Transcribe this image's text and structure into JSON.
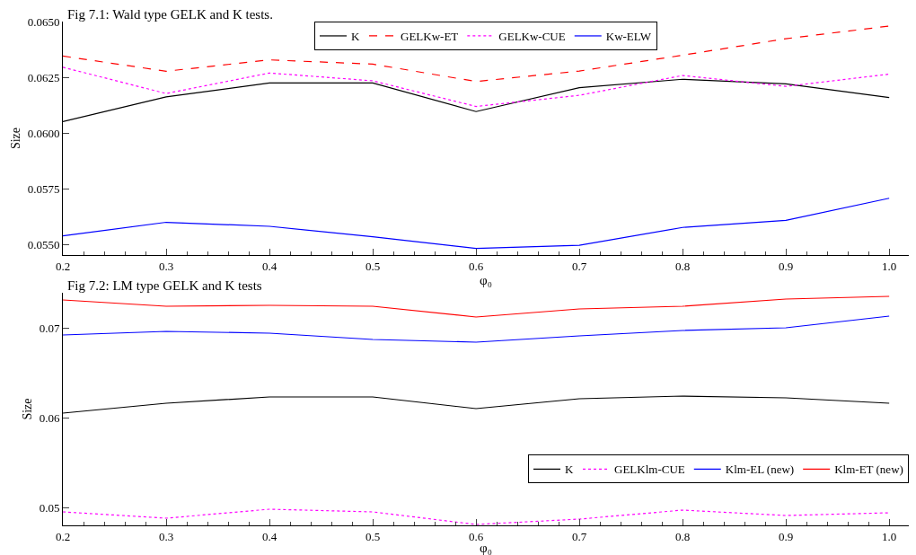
{
  "chart_data": [
    {
      "type": "line",
      "title": "Fig 7.1: Wald type GELK and K tests.",
      "xlabel": "φ₀",
      "ylabel": "Size",
      "x": [
        0.2,
        0.3,
        0.4,
        0.5,
        0.6,
        0.7,
        0.8,
        0.9,
        1.0
      ],
      "xlim": [
        0.2,
        1.019
      ],
      "xticks": [
        {
          "value": 0.2,
          "label": "0.2"
        },
        {
          "value": 0.3,
          "label": "0.3"
        },
        {
          "value": 0.4,
          "label": "0.4"
        },
        {
          "value": 0.5,
          "label": "0.5"
        },
        {
          "value": 0.6,
          "label": "0.6"
        },
        {
          "value": 0.7,
          "label": "0.7"
        },
        {
          "value": 0.8,
          "label": "0.8"
        },
        {
          "value": 0.9,
          "label": "0.9"
        },
        {
          "value": 1.0,
          "label": "1.0"
        }
      ],
      "ylim": [
        0.05452,
        0.065
      ],
      "yticks": [
        {
          "value": 0.055,
          "label": "0.0550"
        },
        {
          "value": 0.0575,
          "label": "0.0575"
        },
        {
          "value": 0.06,
          "label": "0.0600"
        },
        {
          "value": 0.0625,
          "label": "0.0625"
        },
        {
          "value": 0.065,
          "label": "0.0650"
        }
      ],
      "grid": false,
      "legend": "top",
      "marker": "none",
      "series": [
        {
          "name": "K",
          "color": "#000000",
          "line_style": "solid",
          "values": [
            0.06051,
            0.06162,
            0.06224,
            0.06224,
            0.06096,
            0.06203,
            0.06241,
            0.0622,
            0.06159
          ]
        },
        {
          "name": "GELKw-ET",
          "color": "#ff0000",
          "line_style": "dashed",
          "values": [
            0.06345,
            0.06277,
            0.06328,
            0.06309,
            0.06231,
            0.06278,
            0.06349,
            0.06423,
            0.0648
          ]
        },
        {
          "name": "GELKw-CUE",
          "color": "#ff00ff",
          "line_style": "dotted",
          "values": [
            0.06295,
            0.06177,
            0.06269,
            0.06234,
            0.06119,
            0.06169,
            0.06258,
            0.06209,
            0.06264
          ]
        },
        {
          "name": "Kw-ELW",
          "color": "#0000ff",
          "line_style": "solid",
          "values": [
            0.05538,
            0.05599,
            0.05581,
            0.05534,
            0.05482,
            0.05496,
            0.05576,
            0.05608,
            0.05707
          ]
        }
      ]
    },
    {
      "type": "line",
      "title": "Fig 7.2: LM type GELK and K tests",
      "xlabel": "φ₀",
      "ylabel": "Size",
      "x": [
        0.2,
        0.3,
        0.4,
        0.5,
        0.6,
        0.7,
        0.8,
        0.9,
        1.0
      ],
      "xlim": [
        0.2,
        1.019
      ],
      "xticks": [
        {
          "value": 0.2,
          "label": "0.2"
        },
        {
          "value": 0.3,
          "label": "0.3"
        },
        {
          "value": 0.4,
          "label": "0.4"
        },
        {
          "value": 0.5,
          "label": "0.5"
        },
        {
          "value": 0.6,
          "label": "0.6"
        },
        {
          "value": 0.7,
          "label": "0.7"
        },
        {
          "value": 0.8,
          "label": "0.8"
        },
        {
          "value": 0.9,
          "label": "0.9"
        },
        {
          "value": 1.0,
          "label": "1.0"
        }
      ],
      "ylim": [
        0.048,
        0.0739
      ],
      "yticks": [
        0.05,
        0.06,
        0.07
      ],
      "grid": false,
      "legend": "bottom right",
      "marker": "none",
      "series": [
        {
          "name": "K",
          "color": "#000000",
          "line_style": "solid",
          "values": [
            0.0605,
            0.0616,
            0.0623,
            0.0623,
            0.061,
            0.0621,
            0.0624,
            0.0622,
            0.0616
          ]
        },
        {
          "name": "GELKlm-CUE",
          "color": "#ff00ff",
          "line_style": "dotted",
          "values": [
            0.0495,
            0.0488,
            0.0498,
            0.0495,
            0.0481,
            0.0487,
            0.0497,
            0.0491,
            0.0494
          ]
        },
        {
          "name": "Klm-EL (new)",
          "color": "#0000ff",
          "line_style": "solid",
          "values": [
            0.0692,
            0.0696,
            0.0694,
            0.0687,
            0.0684,
            0.0691,
            0.0697,
            0.07,
            0.0713
          ]
        },
        {
          "name": "Klm-ET (new)",
          "color": "#ff0000",
          "line_style": "solid",
          "values": [
            0.0731,
            0.0724,
            0.0725,
            0.0724,
            0.0712,
            0.0721,
            0.0724,
            0.0732,
            0.0735
          ]
        }
      ]
    }
  ]
}
